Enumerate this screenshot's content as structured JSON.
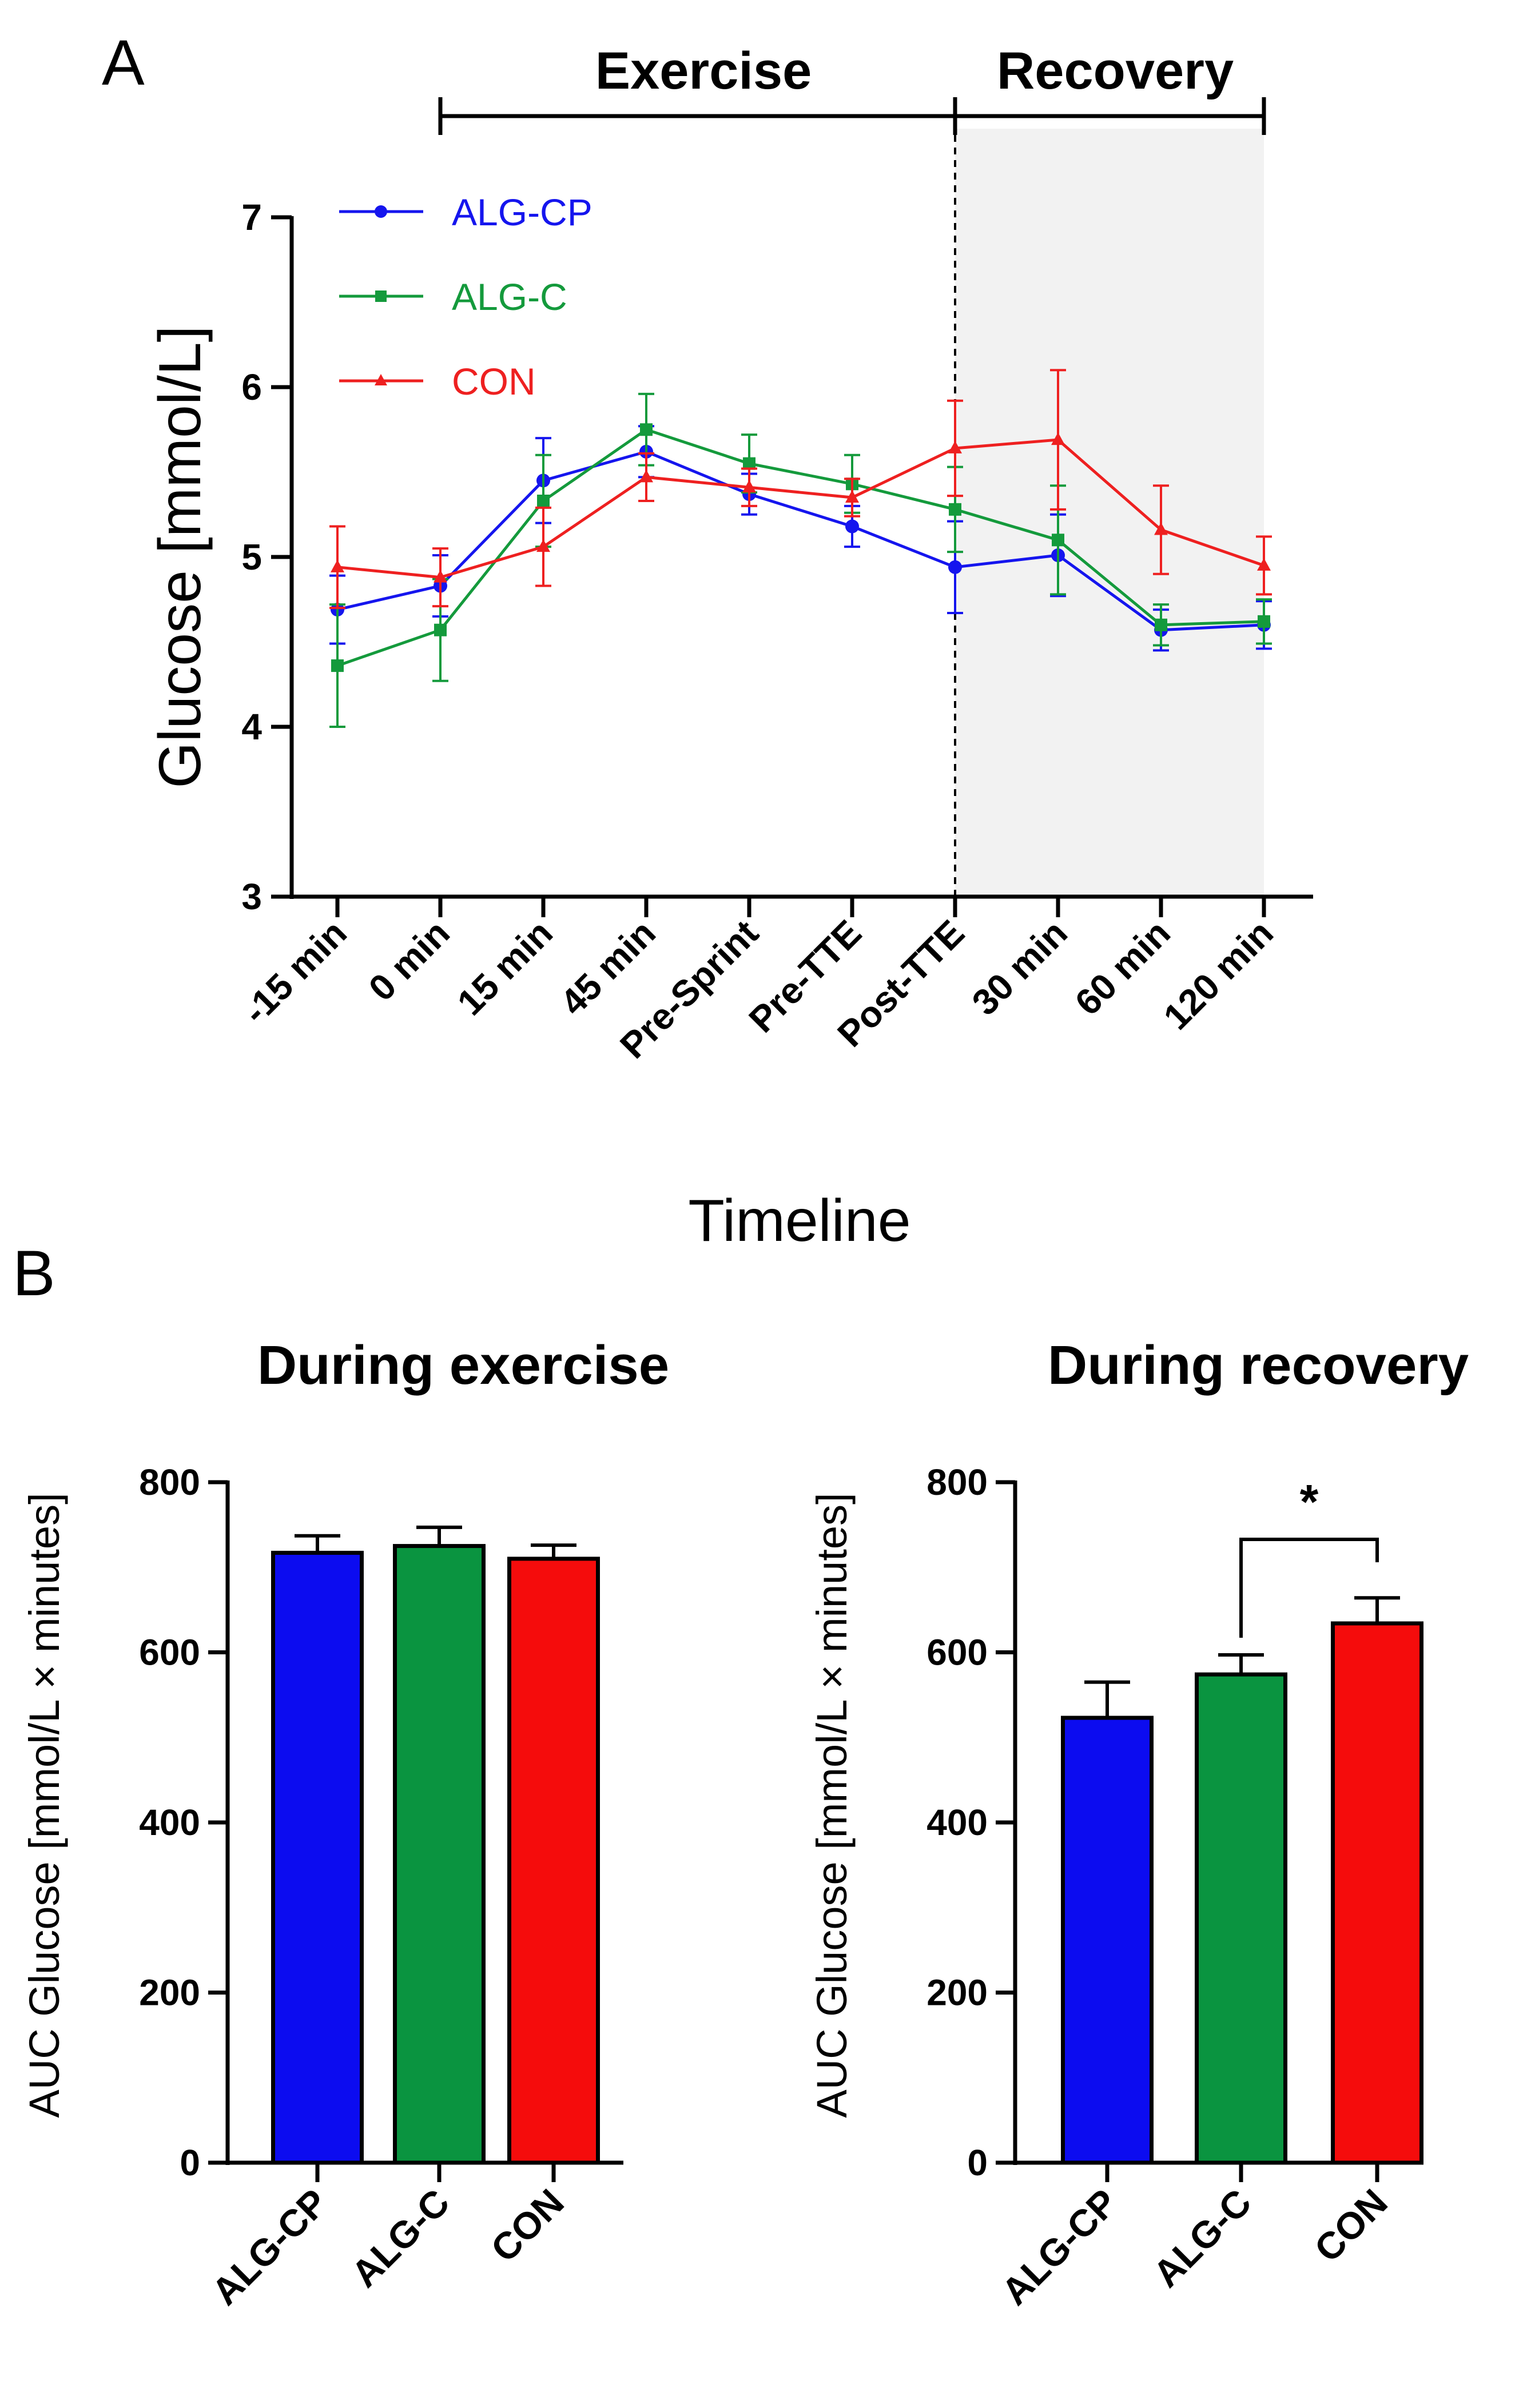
{
  "figure": {
    "panel_a_label": "A",
    "panel_b_label": "B"
  },
  "chart_data": [
    {
      "type": "line",
      "panel": "A",
      "title": "",
      "xlabel": "Timeline",
      "ylabel": "Glucose [mmol/L]",
      "ylim": [
        3,
        7
      ],
      "yticks": [
        3,
        4,
        5,
        6,
        7
      ],
      "categories": [
        "-15 min",
        "0 min",
        "15 min",
        "45 min",
        "Pre-Sprint",
        "Pre-TTE",
        "Post-TTE",
        "30 min",
        "60 min",
        "120 min"
      ],
      "phases": [
        {
          "label": "Exercise",
          "start": "0 min",
          "end": "Post-TTE"
        },
        {
          "label": "Recovery",
          "start": "Post-TTE",
          "end": "120 min",
          "shaded": true
        }
      ],
      "legend_position": "top-left",
      "series": [
        {
          "name": "ALG-CP",
          "color": "#1515ee",
          "marker": "circle",
          "values": [
            4.69,
            4.83,
            5.45,
            5.62,
            5.37,
            5.18,
            4.94,
            5.01,
            4.57,
            4.6
          ],
          "errors": [
            0.2,
            0.18,
            0.25,
            0.15,
            0.12,
            0.12,
            0.27,
            0.24,
            0.12,
            0.14
          ]
        },
        {
          "name": "ALG-C",
          "color": "#149a3c",
          "marker": "square",
          "values": [
            4.36,
            4.57,
            5.33,
            5.75,
            5.55,
            5.43,
            5.28,
            5.1,
            4.6,
            4.62
          ],
          "errors": [
            0.36,
            0.3,
            0.27,
            0.21,
            0.17,
            0.17,
            0.25,
            0.32,
            0.12,
            0.13
          ]
        },
        {
          "name": "CON",
          "color": "#ee2020",
          "marker": "triangle",
          "values": [
            4.94,
            4.88,
            5.06,
            5.47,
            5.41,
            5.35,
            5.64,
            5.69,
            5.16,
            4.95
          ],
          "errors": [
            0.24,
            0.17,
            0.23,
            0.14,
            0.11,
            0.11,
            0.28,
            0.41,
            0.26,
            0.17
          ]
        }
      ]
    },
    {
      "type": "bar",
      "panel": "B-left",
      "title": "During exercise",
      "xlabel": "",
      "ylabel": "AUC Glucose [mmol/L × minutes]",
      "ylim": [
        0,
        800
      ],
      "yticks": [
        0,
        200,
        400,
        600,
        800
      ],
      "categories": [
        "ALG-CP",
        "ALG-C",
        "CON"
      ],
      "values": [
        717,
        725,
        710
      ],
      "errors": [
        20,
        22,
        16
      ],
      "colors": [
        "#0c0cf0",
        "#0a9440",
        "#f50c0c"
      ]
    },
    {
      "type": "bar",
      "panel": "B-right",
      "title": "During recovery",
      "xlabel": "",
      "ylabel": "AUC Glucose [mmol/L × minutes]",
      "ylim": [
        0,
        800
      ],
      "yticks": [
        0,
        200,
        400,
        600,
        800
      ],
      "categories": [
        "ALG-CP",
        "ALG-C",
        "CON"
      ],
      "values": [
        523,
        574,
        634
      ],
      "errors": [
        42,
        23,
        30
      ],
      "colors": [
        "#0c0cf0",
        "#0a9440",
        "#f50c0c"
      ],
      "significance": [
        {
          "between": [
            "ALG-C",
            "CON"
          ],
          "label": "*"
        }
      ]
    }
  ]
}
